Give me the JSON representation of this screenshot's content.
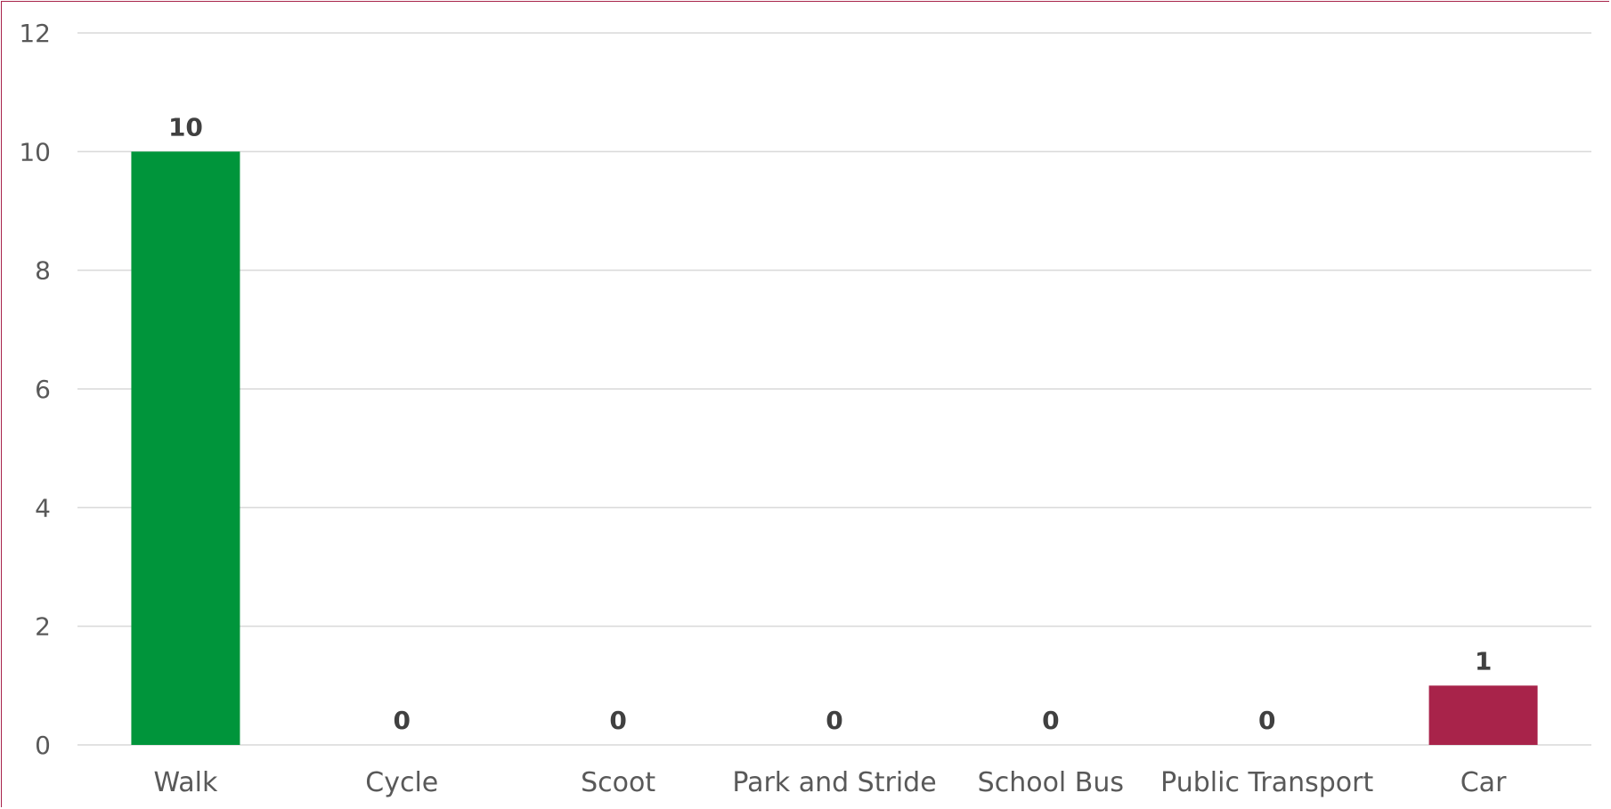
{
  "chart_data": {
    "type": "bar",
    "categories": [
      "Walk",
      "Cycle",
      "Scoot",
      "Park and Stride",
      "School Bus",
      "Public Transport",
      "Car"
    ],
    "values": [
      10,
      0,
      0,
      0,
      0,
      0,
      1
    ],
    "data_labels": [
      "10",
      "0",
      "0",
      "0",
      "0",
      "0",
      "1"
    ],
    "bar_colors": [
      "#00953b",
      "#00953b",
      "#00953b",
      "#00953b",
      "#00953b",
      "#00953b",
      "#a8234a"
    ],
    "title": "",
    "xlabel": "",
    "ylabel": "",
    "ylim": [
      0,
      12
    ],
    "yticks": [
      0,
      2,
      4,
      6,
      8,
      10,
      12
    ],
    "ytick_labels": [
      "0",
      "2",
      "4",
      "6",
      "8",
      "10",
      "12"
    ],
    "grid": true,
    "legend": "none",
    "border_color": "#a8234a",
    "grid_color": "#d9d9d9"
  }
}
